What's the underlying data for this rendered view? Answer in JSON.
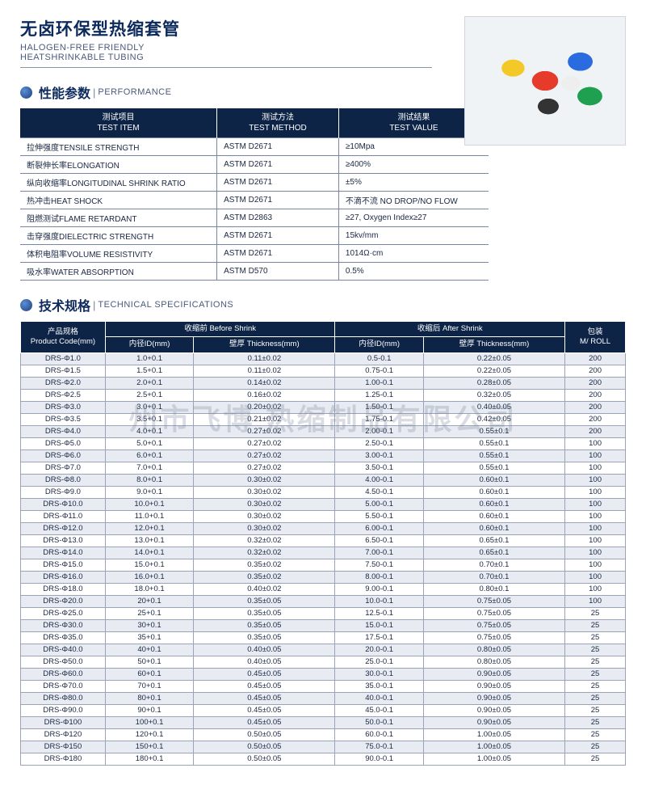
{
  "header": {
    "title_cn": "无卤环保型热缩套管",
    "title_en1": "HALOGEN-FREE FRIENDLY",
    "title_en2": "HEATSHRINKABLE TUBING"
  },
  "sec1": {
    "cn": "性能参数",
    "en": "PERFORMANCE"
  },
  "sec2": {
    "cn": "技术规格",
    "en": "TECHNICAL SPECIFICATIONS"
  },
  "perf": {
    "h1a": "测试项目",
    "h1b": "TEST ITEM",
    "h2a": "测试方法",
    "h2b": "TEST METHOD",
    "h3a": "测试结果",
    "h3b": "TEST VALUE",
    "rows": [
      [
        "拉伸强度TENSILE STRENGTH",
        "ASTM D2671",
        "≥10Mpa"
      ],
      [
        "断裂伸长率ELONGATION",
        "ASTM D2671",
        "≥400%"
      ],
      [
        "纵向收缩率LONGITUDINAL SHRINK RATIO",
        "ASTM D2671",
        "±5%"
      ],
      [
        "热冲击HEAT SHOCK",
        "ASTM D2671",
        "不滴不流 NO DROP/NO FLOW"
      ],
      [
        "阻燃测试FLAME RETARDANT",
        "ASTM D2863",
        "≥27, Oxygen Index≥27"
      ],
      [
        "击穿强度DIELECTRIC STRENGTH",
        "ASTM D2671",
        "15kv/mm"
      ],
      [
        "体积电阻率VOLUME RESISTIVITY",
        "ASTM D2671",
        "1014Ω·cm"
      ],
      [
        "吸水率WATER ABSORPTION",
        "ASTM D570",
        "0.5%"
      ]
    ]
  },
  "spec": {
    "h_code_a": "产品规格",
    "h_code_b": "Product Code(mm)",
    "h_before": "收缩前 Before Shrink",
    "h_after": "收缩后 After Shrink",
    "h_id": "内径ID(mm)",
    "h_thk": "壁厚 Thickness(mm)",
    "h_roll_a": "包装",
    "h_roll_b": "M/ ROLL",
    "rows": [
      [
        "DRS-Φ1.0",
        "1.0+0.1",
        "0.11±0.02",
        "0.5-0.1",
        "0.22±0.05",
        "200"
      ],
      [
        "DRS-Φ1.5",
        "1.5+0.1",
        "0.11±0.02",
        "0.75-0.1",
        "0.22±0.05",
        "200"
      ],
      [
        "DRS-Φ2.0",
        "2.0+0.1",
        "0.14±0.02",
        "1.00-0.1",
        "0.28±0.05",
        "200"
      ],
      [
        "DRS-Φ2.5",
        "2.5+0.1",
        "0.16±0.02",
        "1.25-0.1",
        "0.32±0.05",
        "200"
      ],
      [
        "DRS-Φ3.0",
        "3.0+0.1",
        "0.20±0.02",
        "1.50-0.1",
        "0.40±0.05",
        "200"
      ],
      [
        "DRS-Φ3.5",
        "3.5+0.1",
        "0.21±0.02",
        "1.75-0.1",
        "0.42±0.05",
        "200"
      ],
      [
        "DRS-Φ4.0",
        "4.0+0.1",
        "0.27±0.02",
        "2.00-0.1",
        "0.55±0.1",
        "200"
      ],
      [
        "DRS-Φ5.0",
        "5.0+0.1",
        "0.27±0.02",
        "2.50-0.1",
        "0.55±0.1",
        "100"
      ],
      [
        "DRS-Φ6.0",
        "6.0+0.1",
        "0.27±0.02",
        "3.00-0.1",
        "0.55±0.1",
        "100"
      ],
      [
        "DRS-Φ7.0",
        "7.0+0.1",
        "0.27±0.02",
        "3.50-0.1",
        "0.55±0.1",
        "100"
      ],
      [
        "DRS-Φ8.0",
        "8.0+0.1",
        "0.30±0.02",
        "4.00-0.1",
        "0.60±0.1",
        "100"
      ],
      [
        "DRS-Φ9.0",
        "9.0+0.1",
        "0.30±0.02",
        "4.50-0.1",
        "0.60±0.1",
        "100"
      ],
      [
        "DRS-Φ10.0",
        "10.0+0.1",
        "0.30±0.02",
        "5.00-0.1",
        "0.60±0.1",
        "100"
      ],
      [
        "DRS-Φ11.0",
        "11.0+0.1",
        "0.30±0.02",
        "5.50-0.1",
        "0.60±0.1",
        "100"
      ],
      [
        "DRS-Φ12.0",
        "12.0+0.1",
        "0.30±0.02",
        "6.00-0.1",
        "0.60±0.1",
        "100"
      ],
      [
        "DRS-Φ13.0",
        "13.0+0.1",
        "0.32±0.02",
        "6.50-0.1",
        "0.65±0.1",
        "100"
      ],
      [
        "DRS-Φ14.0",
        "14.0+0.1",
        "0.32±0.02",
        "7.00-0.1",
        "0.65±0.1",
        "100"
      ],
      [
        "DRS-Φ15.0",
        "15.0+0.1",
        "0.35±0.02",
        "7.50-0.1",
        "0.70±0.1",
        "100"
      ],
      [
        "DRS-Φ16.0",
        "16.0+0.1",
        "0.35±0.02",
        "8.00-0.1",
        "0.70±0.1",
        "100"
      ],
      [
        "DRS-Φ18.0",
        "18.0+0.1",
        "0.40±0.02",
        "9.00-0.1",
        "0.80±0.1",
        "100"
      ],
      [
        "DRS-Φ20.0",
        "20+0.1",
        "0.35±0.05",
        "10.0-0.1",
        "0.75±0.05",
        "100"
      ],
      [
        "DRS-Φ25.0",
        "25+0.1",
        "0.35±0.05",
        "12.5-0.1",
        "0.75±0.05",
        "25"
      ],
      [
        "DRS-Φ30.0",
        "30+0.1",
        "0.35±0.05",
        "15.0-0.1",
        "0.75±0.05",
        "25"
      ],
      [
        "DRS-Φ35.0",
        "35+0.1",
        "0.35±0.05",
        "17.5-0.1",
        "0.75±0.05",
        "25"
      ],
      [
        "DRS-Φ40.0",
        "40+0.1",
        "0.40±0.05",
        "20.0-0.1",
        "0.80±0.05",
        "25"
      ],
      [
        "DRS-Φ50.0",
        "50+0.1",
        "0.40±0.05",
        "25.0-0.1",
        "0.80±0.05",
        "25"
      ],
      [
        "DRS-Φ60.0",
        "60+0.1",
        "0.45±0.05",
        "30.0-0.1",
        "0.90±0.05",
        "25"
      ],
      [
        "DRS-Φ70.0",
        "70+0.1",
        "0.45±0.05",
        "35.0-0.1",
        "0.90±0.05",
        "25"
      ],
      [
        "DRS-Φ80.0",
        "80+0.1",
        "0.45±0.05",
        "40.0-0.1",
        "0.90±0.05",
        "25"
      ],
      [
        "DRS-Φ90.0",
        "90+0.1",
        "0.45±0.05",
        "45.0-0.1",
        "0.90±0.05",
        "25"
      ],
      [
        "DRS-Φ100",
        "100+0.1",
        "0.45±0.05",
        "50.0-0.1",
        "0.90±0.05",
        "25"
      ],
      [
        "DRS-Φ120",
        "120+0.1",
        "0.50±0.05",
        "60.0-0.1",
        "1.00±0.05",
        "25"
      ],
      [
        "DRS-Φ150",
        "150+0.1",
        "0.50±0.05",
        "75.0-0.1",
        "1.00±0.05",
        "25"
      ],
      [
        "DRS-Φ180",
        "180+0.1",
        "0.50±0.05",
        "90.0-0.1",
        "1.00±0.05",
        "25"
      ]
    ]
  },
  "watermark": "州市飞博   热缩制品有限公司"
}
